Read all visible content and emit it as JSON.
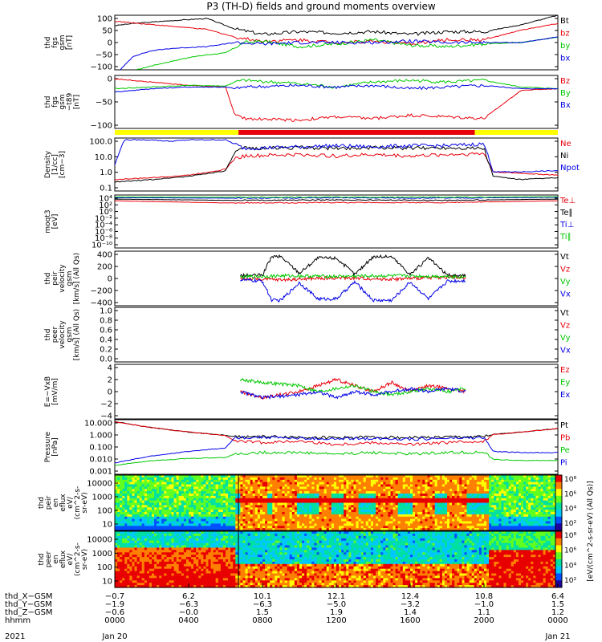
{
  "title": "P3 (TH-D) fields and ground moments overview",
  "colors": {
    "black": "#000000",
    "red": "#e8000b",
    "green": "#00c800",
    "blue": "#0000e6",
    "yellow": "#ffff00",
    "bar_red": "#e8000b"
  },
  "chart_data": [
    {
      "id": "fgs-gsm",
      "type": "line",
      "ylabel": [
        "thd",
        "fgs",
        "gsm",
        "[nT]"
      ],
      "yticks": [
        "100",
        "50",
        "0",
        "−50",
        "−100"
      ],
      "ylim": [
        -100,
        100
      ],
      "series": [
        {
          "name": "Bt",
          "color": "black",
          "x": [
            0,
            1,
            2,
            3,
            4,
            5,
            6.5,
            8,
            10,
            12,
            14,
            16,
            18,
            20,
            22,
            24
          ],
          "y": [
            62,
            70,
            75,
            80,
            84,
            88,
            50,
            30,
            40,
            35,
            40,
            30,
            40,
            40,
            65,
            100
          ]
        },
        {
          "name": "bz",
          "color": "red",
          "x": [
            0,
            1,
            2,
            3,
            4,
            5,
            6.5,
            8,
            10,
            12,
            14,
            16,
            18,
            20,
            22,
            24
          ],
          "y": [
            78,
            72,
            66,
            60,
            54,
            48,
            20,
            5,
            10,
            0,
            5,
            -5,
            10,
            10,
            45,
            70
          ]
        },
        {
          "name": "by",
          "color": "green",
          "x": [
            1.2,
            2,
            3,
            4,
            5,
            6,
            7,
            8,
            10,
            12,
            14,
            16,
            18,
            20,
            22,
            24
          ],
          "y": [
            -100,
            -85,
            -70,
            -55,
            -45,
            -38,
            0,
            5,
            -15,
            -5,
            10,
            -10,
            -15,
            -5,
            0,
            20
          ]
        },
        {
          "name": "bx",
          "color": "blue",
          "x": [
            0.3,
            1,
            2,
            3,
            4,
            5,
            6.5,
            8,
            10,
            12,
            14,
            16,
            18,
            20,
            22,
            24
          ],
          "y": [
            -100,
            -50,
            -30,
            -22,
            -18,
            -15,
            0,
            -5,
            0,
            0,
            0,
            5,
            0,
            0,
            0,
            20
          ]
        }
      ]
    },
    {
      "id": "fgs-gsm-t89",
      "type": "line",
      "ylabel": [
        "thd",
        "fgs",
        "gsm",
        "−t89",
        "[nT]"
      ],
      "yticks": [
        "0",
        "−50",
        "−100"
      ],
      "ylim": [
        -120,
        40
      ],
      "series": [
        {
          "name": "Bz",
          "color": "red",
          "x": [
            0,
            2,
            4,
            6,
            6.5,
            7,
            10,
            12,
            14,
            16,
            18,
            20,
            22,
            24
          ],
          "y": [
            30,
            20,
            10,
            5,
            -80,
            -90,
            -95,
            -85,
            -90,
            -80,
            -85,
            -90,
            -5,
            0
          ]
        },
        {
          "name": "By",
          "color": "green",
          "x": [
            0,
            2,
            4,
            6,
            6.5,
            7,
            10,
            12,
            14,
            16,
            18,
            20,
            22,
            24
          ],
          "y": [
            0,
            5,
            10,
            8,
            20,
            25,
            15,
            5,
            20,
            25,
            20,
            25,
            5,
            0
          ]
        },
        {
          "name": "Bx",
          "color": "blue",
          "x": [
            0,
            2,
            4,
            6,
            6.5,
            7,
            10,
            12,
            14,
            16,
            18,
            20,
            22,
            24
          ],
          "y": [
            -10,
            0,
            5,
            5,
            0,
            5,
            10,
            5,
            10,
            0,
            5,
            10,
            0,
            0
          ]
        }
      ]
    },
    {
      "id": "density",
      "type": "line",
      "yscale": "log",
      "ylabel": [
        "Density",
        "[1/cc]",
        "[cm−3]"
      ],
      "yticks": [
        "100.0",
        "10.0",
        "1.0",
        "0.1"
      ],
      "ylim": [
        0.05,
        200
      ],
      "series": [
        {
          "name": "Ne",
          "color": "red",
          "x": [
            0,
            2,
            4,
            6,
            6.5,
            7,
            10,
            12,
            14,
            16,
            18,
            20,
            20.5,
            22,
            24
          ],
          "y": [
            0.3,
            0.4,
            0.6,
            1.5,
            8,
            12,
            15,
            12,
            15,
            12,
            15,
            18,
            1.0,
            0.8,
            0.6
          ]
        },
        {
          "name": "Ni",
          "color": "black",
          "x": [
            0,
            2,
            4,
            6,
            6.5,
            7,
            10,
            12,
            14,
            16,
            18,
            20,
            20.5,
            22,
            24
          ],
          "y": [
            0.2,
            0.3,
            0.5,
            1.2,
            20,
            40,
            45,
            40,
            45,
            40,
            45,
            40,
            0.5,
            0.3,
            0.4
          ]
        },
        {
          "name": "Npot",
          "color": "blue",
          "x": [
            0,
            0.5,
            2,
            3,
            4,
            6,
            7,
            10,
            12,
            14,
            16,
            18,
            20,
            20.5,
            22,
            24
          ],
          "y": [
            3,
            150,
            150,
            120,
            150,
            150,
            40,
            50,
            60,
            50,
            60,
            60,
            80,
            1,
            1,
            1.2
          ]
        }
      ]
    },
    {
      "id": "moqt3",
      "type": "line",
      "yscale": "log",
      "ylabel": [
        "moqt3",
        "[eV]"
      ],
      "yticks": [
        "10⁴",
        "10²",
        "10⁰",
        "10⁻²",
        "10⁻⁴",
        "10⁻⁶",
        "10⁻⁸",
        "10⁻¹⁰"
      ],
      "ylim": [
        1e-10,
        10000.0
      ],
      "series": [
        {
          "name": "Te⊥",
          "color": "red",
          "x": [
            0,
            6,
            12,
            18,
            24
          ],
          "y": [
            300,
            80,
            100,
            100,
            300
          ]
        },
        {
          "name": "Te∥",
          "color": "black",
          "x": [
            0,
            6,
            12,
            18,
            24
          ],
          "y": [
            800,
            400,
            500,
            400,
            800
          ]
        },
        {
          "name": "Ti⊥",
          "color": "blue",
          "x": [
            0,
            6,
            12,
            18,
            24
          ],
          "y": [
            2000,
            1500,
            1800,
            1500,
            2500
          ]
        },
        {
          "name": "Ti∥",
          "color": "green",
          "x": [
            0,
            6,
            12,
            18,
            24
          ],
          "y": [
            3000,
            2500,
            2800,
            2500,
            3500
          ]
        }
      ]
    },
    {
      "id": "peir-velocity",
      "type": "line",
      "ylabel": [
        "thd",
        "peir",
        "velocity",
        "gsm",
        "[km/s] (All Qs)"
      ],
      "yticks": [
        "400",
        "200",
        "0",
        "−200",
        "−400"
      ],
      "ylim": [
        -400,
        400
      ],
      "series": [
        {
          "name": "Vt",
          "color": "black",
          "x": [
            6.8,
            8,
            8.5,
            9,
            10,
            11,
            12,
            13,
            14,
            15,
            16,
            17,
            18,
            19
          ],
          "y": [
            40,
            50,
            320,
            320,
            80,
            300,
            300,
            60,
            320,
            320,
            60,
            300,
            50,
            40
          ]
        },
        {
          "name": "Vz",
          "color": "red",
          "x": [
            6.8,
            9,
            12,
            15,
            18,
            19
          ],
          "y": [
            0,
            -20,
            10,
            -10,
            20,
            0
          ]
        },
        {
          "name": "Vy",
          "color": "green",
          "x": [
            6.8,
            9,
            12,
            15,
            18,
            19
          ],
          "y": [
            20,
            40,
            30,
            40,
            30,
            20
          ]
        },
        {
          "name": "Vx",
          "color": "blue",
          "x": [
            6.8,
            8,
            8.5,
            9,
            10,
            11,
            12,
            13,
            14,
            15,
            16,
            17,
            18,
            19
          ],
          "y": [
            -20,
            -40,
            -320,
            -320,
            -60,
            -300,
            -300,
            -50,
            -320,
            -320,
            -50,
            -300,
            -40,
            -30
          ]
        }
      ]
    },
    {
      "id": "peer-velocity",
      "type": "line",
      "ylabel": [
        "thd",
        "peer",
        "velocity",
        "gsm",
        "[km/s] (All Qs)"
      ],
      "yticks": [
        "1.0",
        "0.8",
        "0.6",
        "0.4",
        "0.2",
        "0.0"
      ],
      "ylim": [
        0,
        1
      ],
      "series": [
        {
          "name": "Vt",
          "color": "black",
          "x": [],
          "y": []
        },
        {
          "name": "Vz",
          "color": "red",
          "x": [],
          "y": []
        },
        {
          "name": "Vy",
          "color": "green",
          "x": [],
          "y": []
        },
        {
          "name": "Vx",
          "color": "blue",
          "x": [],
          "y": []
        }
      ]
    },
    {
      "id": "efield",
      "type": "line",
      "ylabel": [
        "E=−VxB",
        "[mV/m]"
      ],
      "yticks": [
        "4",
        "2",
        "0",
        "−2",
        "−4"
      ],
      "ylim": [
        -4.5,
        4.5
      ],
      "series": [
        {
          "name": "Ez",
          "color": "red",
          "x": [
            6.8,
            8,
            10,
            11,
            12,
            13,
            14,
            15,
            16,
            17,
            18,
            19
          ],
          "y": [
            0,
            -1,
            0,
            1,
            2,
            1,
            0,
            1.5,
            0,
            1,
            0.5,
            0
          ]
        },
        {
          "name": "Ey",
          "color": "green",
          "x": [
            6.8,
            8,
            10,
            11,
            12,
            13,
            14,
            15,
            16,
            17,
            18,
            19
          ],
          "y": [
            2,
            1.5,
            1,
            0,
            0.5,
            1,
            0,
            -0.5,
            0,
            0.5,
            0,
            0.5
          ]
        },
        {
          "name": "Ex",
          "color": "blue",
          "x": [
            6.8,
            8,
            10,
            11,
            12,
            13,
            14,
            15,
            16,
            17,
            18,
            19
          ],
          "y": [
            0,
            -1,
            -0.5,
            0,
            -1,
            0,
            -0.5,
            0,
            0.5,
            0,
            0.5,
            0
          ]
        }
      ]
    },
    {
      "id": "pressure",
      "type": "line",
      "yscale": "log",
      "ylabel": [
        "Pressure",
        "[nPa]"
      ],
      "yticks": [
        "10.000",
        "1.000",
        "0.100",
        "0.010",
        "0.001"
      ],
      "ylim": [
        0.0005,
        30
      ],
      "series": [
        {
          "name": "Pt",
          "color": "black",
          "x": [
            0,
            2,
            4,
            6,
            6.5,
            8,
            10,
            12,
            14,
            16,
            18,
            20,
            20.5,
            22,
            24
          ],
          "y": [
            20,
            6,
            2.5,
            1.3,
            1.0,
            1.0,
            0.9,
            0.8,
            0.9,
            0.8,
            0.9,
            1.0,
            1.5,
            2.5,
            5
          ]
        },
        {
          "name": "Pb",
          "color": "red",
          "x": [
            0,
            2,
            4,
            6,
            6.5,
            8,
            10,
            12,
            14,
            16,
            18,
            20,
            20.5,
            22,
            24
          ],
          "y": [
            20,
            6,
            2.5,
            1.2,
            0.4,
            0.3,
            0.4,
            0.2,
            0.3,
            0.2,
            0.3,
            0.4,
            1.5,
            2.5,
            5
          ]
        },
        {
          "name": "Pe",
          "color": "green",
          "x": [
            0,
            2,
            4,
            6,
            6.5,
            8,
            10,
            12,
            14,
            16,
            18,
            20,
            20.5,
            22,
            24
          ],
          "y": [
            0.003,
            0.008,
            0.012,
            0.015,
            0.03,
            0.04,
            0.04,
            0.03,
            0.04,
            0.03,
            0.04,
            0.04,
            0.01,
            0.008,
            0.008
          ]
        },
        {
          "name": "Pi",
          "color": "blue",
          "x": [
            0,
            1,
            2,
            4,
            6,
            6.5,
            8,
            10,
            12,
            14,
            16,
            18,
            20,
            20.5,
            22,
            24
          ],
          "y": [
            0.005,
            0.01,
            0.02,
            0.05,
            0.1,
            0.8,
            0.9,
            0.7,
            0.6,
            0.7,
            0.6,
            0.7,
            0.8,
            0.05,
            0.04,
            0.04
          ]
        }
      ]
    },
    {
      "id": "peir-spectrogram",
      "type": "heatmap",
      "ylabel": [
        "thd",
        "peir",
        "en",
        "eflux",
        "eV/",
        "(cm^2-s-",
        "sr-eV)"
      ],
      "yticks": [
        "10000",
        "1000",
        "100",
        "10"
      ],
      "zlabel": "[eV/(cm^2-s-sr-eV) (All Qs)]",
      "zticks": [
        "10⁸",
        "10⁶",
        "10⁴",
        "10²"
      ]
    },
    {
      "id": "peer-spectrogram",
      "type": "heatmap",
      "ylabel": [
        "thd",
        "peer",
        "en",
        "eflux",
        "eV/",
        "(cm^2-s-",
        "sr-eV)"
      ],
      "yticks": [
        "10000",
        "1000",
        "100",
        "10"
      ],
      "zlabel": "[eV/(cm^2-s-sr-eV) (All Qs)]",
      "zticks": [
        "10⁸",
        "10⁶",
        "10⁴",
        "10²"
      ]
    }
  ],
  "xaxis": {
    "rows": [
      {
        "label": "thd_X−GSM",
        "values": [
          "−0.7",
          "6.2",
          "10.1",
          "12.1",
          "12.4",
          "10.8",
          "6.4"
        ]
      },
      {
        "label": "thd_Y−GSM",
        "values": [
          "−1.9",
          "−6.3",
          "−6.3",
          "−5.0",
          "−3.2",
          "−1.0",
          "1.5"
        ]
      },
      {
        "label": "thd_Z−GSM",
        "values": [
          "−0.6",
          "−0.0",
          "1.5",
          "1.9",
          "1.4",
          "1.1",
          "1.2"
        ]
      },
      {
        "label": "hhmm",
        "values": [
          "0000",
          "0400",
          "0800",
          "1200",
          "1600",
          "2000",
          "0000"
        ]
      }
    ],
    "year": "2021",
    "date_start": "Jan 20",
    "date_end": "Jan 21"
  }
}
